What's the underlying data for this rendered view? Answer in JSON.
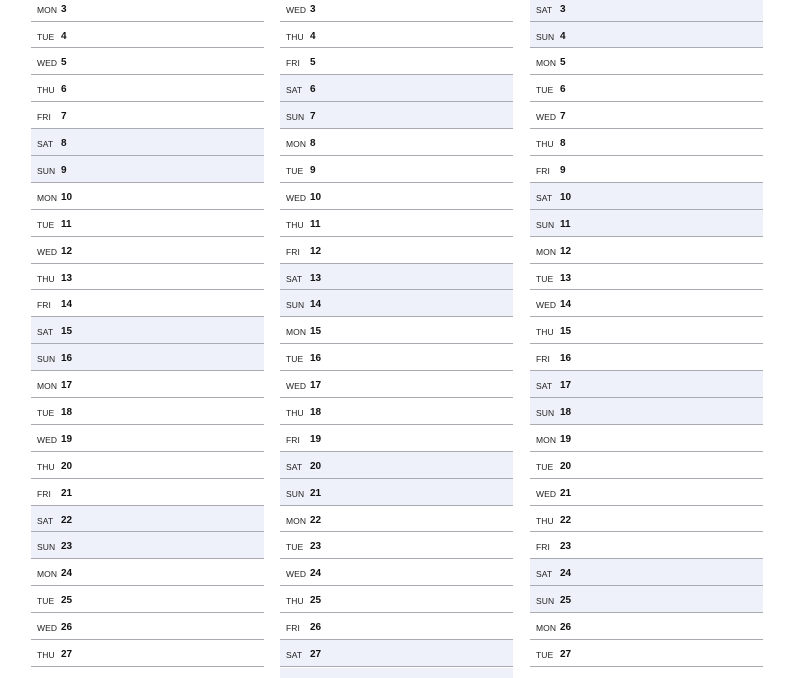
{
  "colors": {
    "weekend_fill": "#eef1f9",
    "rule": "#a9abb0"
  },
  "columns": [
    {
      "rows": [
        {
          "dow": "MON",
          "day": "3",
          "weekend": false
        },
        {
          "dow": "TUE",
          "day": "4",
          "weekend": false
        },
        {
          "dow": "WED",
          "day": "5",
          "weekend": false
        },
        {
          "dow": "THU",
          "day": "6",
          "weekend": false
        },
        {
          "dow": "FRI",
          "day": "7",
          "weekend": false
        },
        {
          "dow": "SAT",
          "day": "8",
          "weekend": true
        },
        {
          "dow": "SUN",
          "day": "9",
          "weekend": true
        },
        {
          "dow": "MON",
          "day": "10",
          "weekend": false
        },
        {
          "dow": "TUE",
          "day": "11",
          "weekend": false
        },
        {
          "dow": "WED",
          "day": "12",
          "weekend": false
        },
        {
          "dow": "THU",
          "day": "13",
          "weekend": false
        },
        {
          "dow": "FRI",
          "day": "14",
          "weekend": false
        },
        {
          "dow": "SAT",
          "day": "15",
          "weekend": true
        },
        {
          "dow": "SUN",
          "day": "16",
          "weekend": true
        },
        {
          "dow": "MON",
          "day": "17",
          "weekend": false
        },
        {
          "dow": "TUE",
          "day": "18",
          "weekend": false
        },
        {
          "dow": "WED",
          "day": "19",
          "weekend": false
        },
        {
          "dow": "THU",
          "day": "20",
          "weekend": false
        },
        {
          "dow": "FRI",
          "day": "21",
          "weekend": false
        },
        {
          "dow": "SAT",
          "day": "22",
          "weekend": true
        },
        {
          "dow": "SUN",
          "day": "23",
          "weekend": true
        },
        {
          "dow": "MON",
          "day": "24",
          "weekend": false
        },
        {
          "dow": "TUE",
          "day": "25",
          "weekend": false
        },
        {
          "dow": "WED",
          "day": "26",
          "weekend": false
        },
        {
          "dow": "THU",
          "day": "27",
          "weekend": false
        }
      ]
    },
    {
      "rows": [
        {
          "dow": "WED",
          "day": "3",
          "weekend": false
        },
        {
          "dow": "THU",
          "day": "4",
          "weekend": false
        },
        {
          "dow": "FRI",
          "day": "5",
          "weekend": false
        },
        {
          "dow": "SAT",
          "day": "6",
          "weekend": true
        },
        {
          "dow": "SUN",
          "day": "7",
          "weekend": true
        },
        {
          "dow": "MON",
          "day": "8",
          "weekend": false
        },
        {
          "dow": "TUE",
          "day": "9",
          "weekend": false
        },
        {
          "dow": "WED",
          "day": "10",
          "weekend": false
        },
        {
          "dow": "THU",
          "day": "11",
          "weekend": false
        },
        {
          "dow": "FRI",
          "day": "12",
          "weekend": false
        },
        {
          "dow": "SAT",
          "day": "13",
          "weekend": true
        },
        {
          "dow": "SUN",
          "day": "14",
          "weekend": true
        },
        {
          "dow": "MON",
          "day": "15",
          "weekend": false
        },
        {
          "dow": "TUE",
          "day": "16",
          "weekend": false
        },
        {
          "dow": "WED",
          "day": "17",
          "weekend": false
        },
        {
          "dow": "THU",
          "day": "18",
          "weekend": false
        },
        {
          "dow": "FRI",
          "day": "19",
          "weekend": false
        },
        {
          "dow": "SAT",
          "day": "20",
          "weekend": true
        },
        {
          "dow": "SUN",
          "day": "21",
          "weekend": true
        },
        {
          "dow": "MON",
          "day": "22",
          "weekend": false
        },
        {
          "dow": "TUE",
          "day": "23",
          "weekend": false
        },
        {
          "dow": "WED",
          "day": "24",
          "weekend": false
        },
        {
          "dow": "THU",
          "day": "25",
          "weekend": false
        },
        {
          "dow": "FRI",
          "day": "26",
          "weekend": false
        },
        {
          "dow": "SAT",
          "day": "27",
          "weekend": true
        }
      ]
    },
    {
      "rows": [
        {
          "dow": "SAT",
          "day": "3",
          "weekend": true
        },
        {
          "dow": "SUN",
          "day": "4",
          "weekend": true
        },
        {
          "dow": "MON",
          "day": "5",
          "weekend": false
        },
        {
          "dow": "TUE",
          "day": "6",
          "weekend": false
        },
        {
          "dow": "WED",
          "day": "7",
          "weekend": false
        },
        {
          "dow": "THU",
          "day": "8",
          "weekend": false
        },
        {
          "dow": "FRI",
          "day": "9",
          "weekend": false
        },
        {
          "dow": "SAT",
          "day": "10",
          "weekend": true
        },
        {
          "dow": "SUN",
          "day": "11",
          "weekend": true
        },
        {
          "dow": "MON",
          "day": "12",
          "weekend": false
        },
        {
          "dow": "TUE",
          "day": "13",
          "weekend": false
        },
        {
          "dow": "WED",
          "day": "14",
          "weekend": false
        },
        {
          "dow": "THU",
          "day": "15",
          "weekend": false
        },
        {
          "dow": "FRI",
          "day": "16",
          "weekend": false
        },
        {
          "dow": "SAT",
          "day": "17",
          "weekend": true
        },
        {
          "dow": "SUN",
          "day": "18",
          "weekend": true
        },
        {
          "dow": "MON",
          "day": "19",
          "weekend": false
        },
        {
          "dow": "TUE",
          "day": "20",
          "weekend": false
        },
        {
          "dow": "WED",
          "day": "21",
          "weekend": false
        },
        {
          "dow": "THU",
          "day": "22",
          "weekend": false
        },
        {
          "dow": "FRI",
          "day": "23",
          "weekend": false
        },
        {
          "dow": "SAT",
          "day": "24",
          "weekend": true
        },
        {
          "dow": "SUN",
          "day": "25",
          "weekend": true
        },
        {
          "dow": "MON",
          "day": "26",
          "weekend": false
        },
        {
          "dow": "TUE",
          "day": "27",
          "weekend": false
        }
      ]
    }
  ]
}
